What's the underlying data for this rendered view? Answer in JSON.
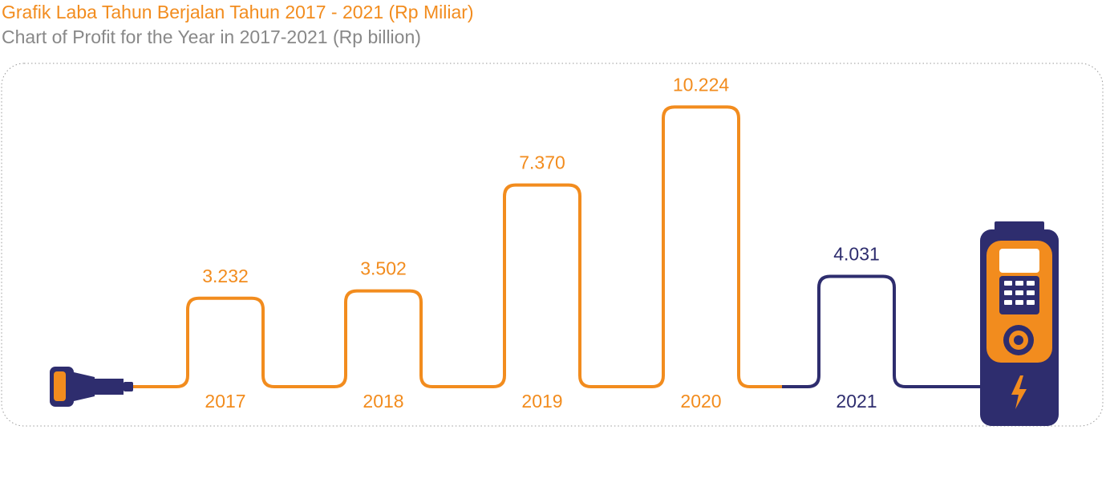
{
  "title": "Grafik Laba Tahun Berjalan Tahun 2017 - 2021 (Rp Miliar)",
  "subtitle": "Chart of Profit for the Year in 2017-2021 (Rp billion)",
  "colors": {
    "orange": "#F28C1E",
    "navy": "#2E2D6E",
    "subtitle": "#888888",
    "frame": "#9a9a9a"
  },
  "icons": {
    "plug": "plug-icon",
    "charger": "charging-station-icon",
    "bolt": "lightning-bolt-icon"
  },
  "chart_data": {
    "type": "bar",
    "style": "cable-shaped columns",
    "categories": [
      "2017",
      "2018",
      "2019",
      "2020",
      "2021"
    ],
    "values": [
      3232,
      3502,
      7370,
      10224,
      4031
    ],
    "value_labels": [
      "3.232",
      "3.502",
      "7.370",
      "10.224",
      "4.031"
    ],
    "highlight_colors": [
      "#F28C1E",
      "#F28C1E",
      "#F28C1E",
      "#F28C1E",
      "#2E2D6E"
    ],
    "ylim": [
      0,
      10224
    ],
    "grid": false,
    "legend": "none"
  }
}
